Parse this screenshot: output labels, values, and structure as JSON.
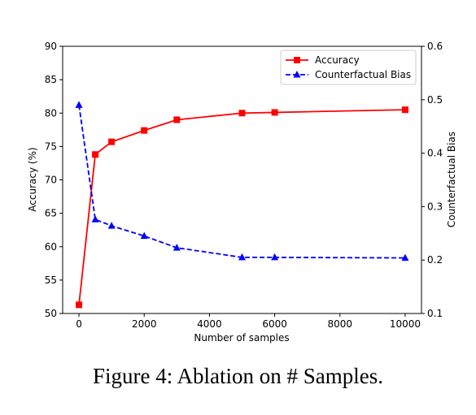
{
  "caption": {
    "label": "Figure 4:",
    "text": "Ablation on # Samples."
  },
  "chart_data": {
    "type": "line",
    "xlabel": "Number of samples",
    "ylabel": "Accuracy (%)",
    "y2label": "Counterfactual Bias",
    "xlim": [
      -500,
      10500
    ],
    "ylim": [
      50,
      90
    ],
    "y2lim": [
      0.1,
      0.6
    ],
    "x_ticks": [
      0,
      2000,
      4000,
      6000,
      8000,
      10000
    ],
    "y_ticks": [
      50,
      55,
      60,
      65,
      70,
      75,
      80,
      85,
      90
    ],
    "y2_ticks": [
      0.1,
      0.2,
      0.3,
      0.4,
      0.5,
      0.6
    ],
    "x_tick_labels": [
      "0",
      "2000",
      "4000",
      "6000",
      "8000",
      "10000"
    ],
    "y_tick_labels": [
      "50",
      "55",
      "60",
      "65",
      "70",
      "75",
      "80",
      "85",
      "90"
    ],
    "y2_tick_labels": [
      "0.1",
      "0.2",
      "0.3",
      "0.4",
      "0.5",
      "0.6"
    ],
    "grid": false,
    "legend_position": "top-right",
    "series": [
      {
        "name": "Accuracy",
        "axis": "left",
        "color": "#ff0000",
        "marker": "square",
        "line_style": "solid",
        "x": [
          0,
          500,
          1000,
          2000,
          3000,
          5000,
          6000,
          10000
        ],
        "y": [
          51.3,
          73.8,
          75.7,
          77.4,
          79.0,
          80.0,
          80.1,
          80.5
        ]
      },
      {
        "name": "Counterfactual Bias",
        "axis": "right",
        "color": "#0000ff",
        "marker": "triangle",
        "line_style": "dashed",
        "x": [
          0,
          500,
          1000,
          2000,
          3000,
          5000,
          6000,
          10000
        ],
        "y": [
          0.49,
          0.276,
          0.264,
          0.245,
          0.223,
          0.205,
          0.205,
          0.204
        ]
      }
    ]
  }
}
